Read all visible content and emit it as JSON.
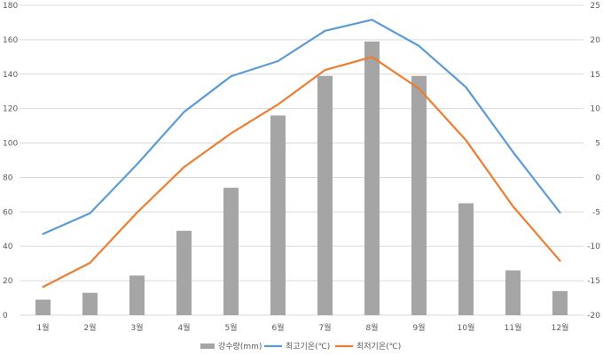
{
  "chart_data": {
    "type": "bar+line",
    "title": "",
    "categories": [
      "1월",
      "2월",
      "3월",
      "4월",
      "5월",
      "6월",
      "7월",
      "8월",
      "9월",
      "10월",
      "11월",
      "12월"
    ],
    "series": [
      {
        "name": "강수량(mm)",
        "type": "bar",
        "axis": "left",
        "color": "#a5a5a5",
        "values": [
          9,
          13,
          23,
          49,
          74,
          116,
          139,
          159,
          139,
          65,
          26,
          14
        ]
      },
      {
        "name": "최고기온(℃)",
        "type": "line",
        "axis": "right",
        "color": "#5b9bd5",
        "values": [
          -8.2,
          -5.2,
          1.9,
          9.5,
          14.7,
          16.9,
          21.3,
          22.9,
          19.1,
          13.1,
          3.7,
          -5.1
        ]
      },
      {
        "name": "최저기온(℃)",
        "type": "line",
        "axis": "right",
        "color": "#ed7d31",
        "values": [
          -15.9,
          -12.4,
          -5.1,
          1.5,
          6.4,
          10.6,
          15.6,
          17.5,
          12.9,
          5.4,
          -4.2,
          -12.1
        ]
      }
    ],
    "yaxis_left": {
      "min": 0,
      "max": 180,
      "ticks": [
        "0",
        "20",
        "40",
        "60",
        "80",
        "100",
        "120",
        "140",
        "160",
        "180"
      ]
    },
    "yaxis_right": {
      "min": -20,
      "max": 25,
      "ticks": [
        "-20",
        "-15",
        "-10",
        "-5",
        "0",
        "5",
        "10",
        "15",
        "20",
        "25"
      ]
    },
    "grid": true,
    "legend_position": "bottom",
    "colors": {
      "grid": "#d9d9d9",
      "text": "#595959"
    }
  }
}
